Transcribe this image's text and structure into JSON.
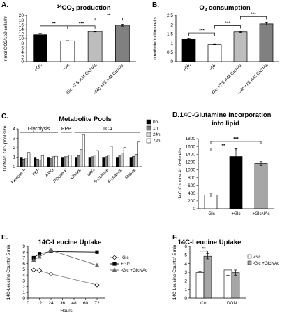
{
  "chart_data": [
    {
      "panel": "A.",
      "type": "bar",
      "title": "14CO2 production",
      "title_parts": {
        "sup": "14",
        "main": "CO",
        "sub": "2",
        "rest": " production"
      },
      "ylabel": "nmol CO2/1e9 cells/hr",
      "ylim": [
        0,
        20
      ],
      "yticks": [
        0,
        2,
        4,
        6,
        8,
        10,
        12,
        14,
        16,
        18,
        20
      ],
      "categories": [
        "+Glc",
        "-Glc",
        "-Glc +7.5 mM GlcNAc",
        "-Glc +15 mM GlcNAc"
      ],
      "values": [
        11.6,
        9.0,
        13.0,
        15.8
      ],
      "errors": [
        0.6,
        0.1,
        0.2,
        0.4
      ],
      "colors": [
        "#000000",
        "#ffffff",
        "#bdbdbd",
        "#808080"
      ],
      "significance": [
        {
          "from": 0,
          "to": 1,
          "label": "**"
        },
        {
          "from": 1,
          "to": 2,
          "label": "***"
        },
        {
          "from": 2,
          "to": 3,
          "label": "**"
        }
      ]
    },
    {
      "panel": "B.",
      "type": "bar",
      "title": "O2 consumption",
      "title_parts": {
        "sup": "",
        "main": "O",
        "sub": "2",
        "rest": " consumption"
      },
      "ylabel": "nmol/min/million cells",
      "ylim": [
        0,
        2.5
      ],
      "yticks": [
        0,
        0.5,
        1,
        1.5,
        2,
        2.5
      ],
      "categories": [
        "+Glc",
        "-Glc",
        "-Glc +7.5 mM GlcNAc",
        "-Glc +15 mM GlcNAc"
      ],
      "values": [
        1.2,
        0.92,
        1.6,
        2.05
      ],
      "errors": [
        0.04,
        0.02,
        0.03,
        0.06
      ],
      "colors": [
        "#000000",
        "#ffffff",
        "#bdbdbd",
        "#808080"
      ],
      "significance": [
        {
          "from": 0,
          "to": 1,
          "label": "***"
        },
        {
          "from": 1,
          "to": 2,
          "label": "***"
        },
        {
          "from": 2,
          "to": 3,
          "label": "***"
        }
      ]
    },
    {
      "panel": "C.",
      "type": "bar",
      "title": "Metabolite Pools",
      "ylabel": "GlcNAc/ Glc- pool size",
      "ylim": [
        0,
        4
      ],
      "yticks": [
        0,
        1,
        2,
        3,
        4
      ],
      "categories": [
        "Hexose-P",
        "FBP",
        "3-PG",
        "Ribose-P",
        "Citrate",
        "aKG",
        "Succinate",
        "Fumarate",
        "Malate"
      ],
      "series": [
        {
          "name": "0h",
          "color": "#000000",
          "values": [
            1.0,
            1.0,
            1.0,
            1.0,
            1.0,
            1.0,
            1.0,
            1.0,
            1.0
          ]
        },
        {
          "name": "1h",
          "color": "#808080",
          "values": [
            0.8,
            0.8,
            0.85,
            1.05,
            1.15,
            1.05,
            1.05,
            1.2,
            1.1
          ]
        },
        {
          "name": "24h",
          "color": "#d0d0d0",
          "values": [
            0.9,
            0.7,
            1.05,
            1.05,
            1.8,
            1.2,
            1.2,
            1.45,
            1.3
          ]
        },
        {
          "name": "72h",
          "color": "#ffffff",
          "values": [
            1.5,
            1.15,
            1.1,
            1.2,
            3.35,
            1.7,
            2.15,
            2.05,
            2.65
          ]
        }
      ],
      "groups": [
        {
          "label": "Glycolysis",
          "from": 0,
          "to": 2
        },
        {
          "label": "PPP",
          "from": 3,
          "to": 3
        },
        {
          "label": "TCA",
          "from": 4,
          "to": 8
        }
      ],
      "legend_position": "right"
    },
    {
      "panel": "D.",
      "type": "bar",
      "title": "14C-Glutamine incorporation into lipid",
      "title_lines": [
        "14C-Glutamine incorporation",
        "into lipid"
      ],
      "ylabel": "14C Counts/ 4*10^6 cells",
      "ylim": [
        0,
        1800
      ],
      "yticks": [
        0,
        200,
        400,
        600,
        800,
        1000,
        1200,
        1400,
        1600,
        1800
      ],
      "categories": [
        "-Glc",
        "+Glc",
        "+GlcNAc"
      ],
      "values": [
        350,
        1340,
        1160
      ],
      "errors": [
        50,
        200,
        50
      ],
      "colors": [
        "#ffffff",
        "#000000",
        "#a6a6a6"
      ],
      "significance": [
        {
          "from": 0,
          "to": 1,
          "label": "**"
        },
        {
          "from": 0,
          "to": 2,
          "label": "***"
        }
      ]
    },
    {
      "panel": "E.",
      "type": "line",
      "title": "14C-Leucine Uptake",
      "xlabel": "Hours",
      "ylabel": "14C-Leucine Counts/ 5 min",
      "ylim": [
        0,
        9
      ],
      "yticks": [
        0,
        1,
        2,
        3,
        4,
        5,
        6,
        7,
        8,
        9
      ],
      "xlim": [
        0,
        80
      ],
      "xticks": [
        0,
        12,
        24,
        36,
        48,
        60,
        72
      ],
      "series": [
        {
          "name": "-Glc",
          "marker": "diamond-open",
          "x": [
            6,
            12,
            24,
            72
          ],
          "y": [
            4.9,
            4.8,
            4.2,
            2.3
          ]
        },
        {
          "name": "+Glc",
          "marker": "square-filled",
          "x": [
            6,
            12,
            24,
            72
          ],
          "y": [
            7.0,
            7.7,
            8.1,
            8.0
          ]
        },
        {
          "name": "-Glc +GlcNAc",
          "marker": "triangle-filled",
          "x": [
            6,
            12,
            24,
            72
          ],
          "y": [
            6.6,
            7.2,
            8.3,
            5.7
          ]
        }
      ],
      "legend_position": "right"
    },
    {
      "panel": "F.",
      "type": "bar",
      "title": "14C-Leucine Uptake",
      "ylabel": "14C-Leucine Counts/ 5 min",
      "ylim": [
        0,
        6
      ],
      "yticks": [
        0,
        1,
        2,
        3,
        4,
        5,
        6
      ],
      "categories": [
        "Ctrl",
        "DON"
      ],
      "series": [
        {
          "name": "-Glc",
          "color": "#ffffff",
          "values": [
            2.95,
            3.25
          ],
          "errors": [
            0.15,
            0.6
          ]
        },
        {
          "name": "-Glc +GlcNAc",
          "color": "#a6a6a6",
          "values": [
            4.85,
            2.95
          ],
          "errors": [
            0.3,
            0.3
          ]
        }
      ],
      "significance": [
        {
          "category": 0,
          "label": "**"
        }
      ],
      "legend_position": "top-right"
    }
  ]
}
